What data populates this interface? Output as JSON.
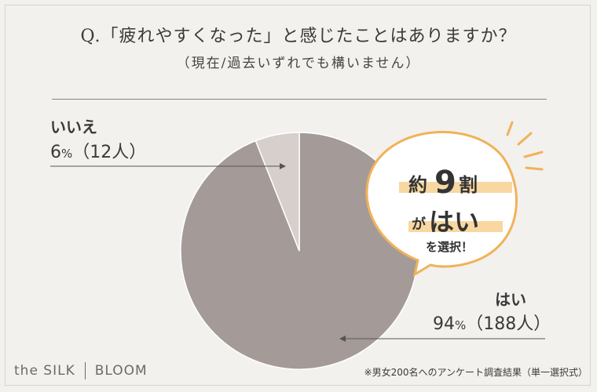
{
  "header": {
    "title": "Q.「疲れやすくなった」と感じたことはありますか？",
    "subtitle": "（現在/過去いずれでも構いません）"
  },
  "callout": {
    "line1_pre": "約",
    "line1_num": "9",
    "line1_post": "割",
    "line2_pre": "が",
    "line2_main": "はい",
    "line3": "を選択！"
  },
  "labels": {
    "no_label": "いいえ",
    "no_value": "6",
    "no_unit": "%",
    "no_count": "（12人）",
    "yes_label": "はい",
    "yes_value": "94",
    "yes_unit": "%",
    "yes_count": "（188人）"
  },
  "footer": {
    "logo_left": "the SILK",
    "logo_right": "BLOOM",
    "footnote": "※男女200名へのアンケート調査結果（単一選択式）"
  },
  "colors": {
    "yes_slice": "#a49a98",
    "no_slice": "#d6cfcc",
    "accent": "#f0b25a"
  },
  "chart_data": {
    "type": "pie",
    "categories": [
      "はい",
      "いいえ"
    ],
    "values": [
      94,
      6
    ],
    "counts": [
      188,
      12
    ]
  }
}
